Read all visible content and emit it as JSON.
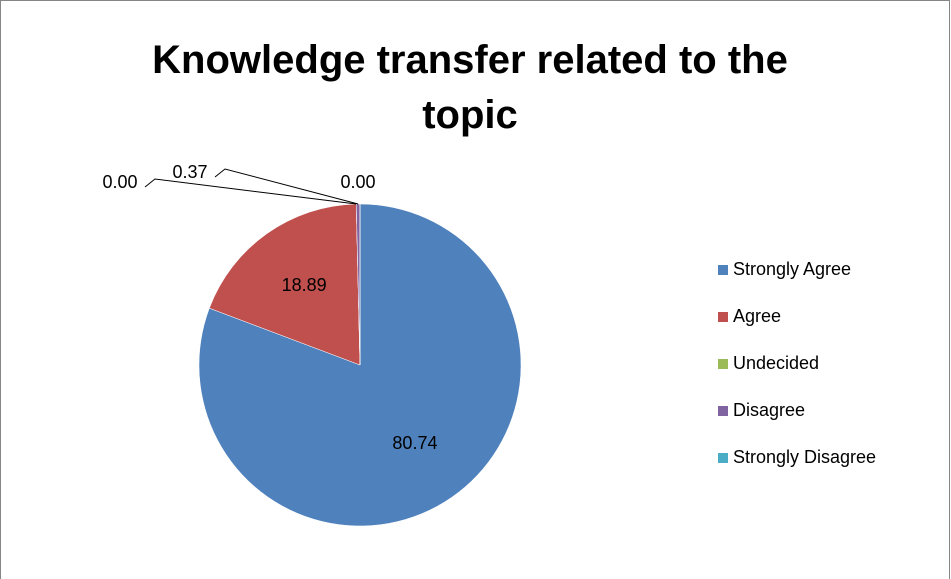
{
  "chart_data": {
    "type": "pie",
    "title": "Knowledge transfer related to the topic",
    "categories": [
      "Strongly Agree",
      "Agree",
      "Undecided",
      "Disagree",
      "Strongly Disagree"
    ],
    "values": [
      80.74,
      18.89,
      0,
      0.37,
      0
    ],
    "value_labels": [
      "80.74",
      "18.89",
      "0.00",
      "0.37",
      "0.00"
    ],
    "colors": [
      "#4f81bd",
      "#c0504d",
      "#9bbb59",
      "#8064a2",
      "#4bacc6"
    ],
    "legend": "right"
  }
}
